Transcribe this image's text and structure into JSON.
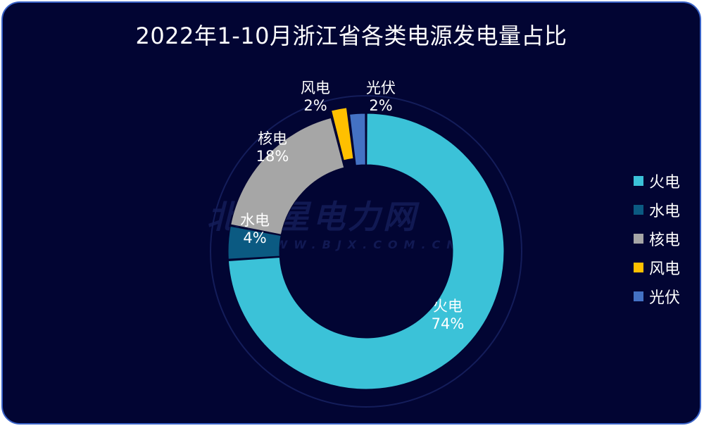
{
  "chart_data": {
    "type": "pie",
    "variant": "donut",
    "title": "2022年1-10月浙江省各类电源发电量占比",
    "categories": [
      "火电",
      "水电",
      "核电",
      "风电",
      "光伏"
    ],
    "values": [
      74,
      4,
      18,
      2,
      2
    ],
    "value_labels": [
      "74%",
      "4%",
      "18%",
      "2%",
      "2%"
    ],
    "colors": [
      "#3bc2d8",
      "#0b5a82",
      "#a6a6a6",
      "#ffc000",
      "#4472c4"
    ],
    "legend_position": "right"
  },
  "watermark": {
    "main": "北极星电力网",
    "sub": "WWW.BJX.COM.CN"
  }
}
